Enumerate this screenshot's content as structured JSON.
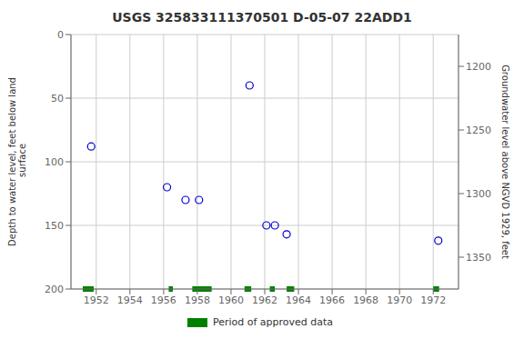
{
  "chart_data": {
    "type": "scatter",
    "title": "USGS 325833111370501 D-05-07 22ADD1",
    "x": [
      1951.7,
      1956.2,
      1957.3,
      1958.1,
      1961.1,
      1962.1,
      1962.6,
      1963.3,
      1972.3
    ],
    "values": [
      88,
      120,
      130,
      130,
      40,
      150,
      150,
      157,
      162
    ],
    "color": "#0000cc",
    "marker": "circle",
    "approved_periods": {
      "name": "Period of approved data",
      "color": "#008000",
      "start": [
        1951.2,
        1956.3,
        1957.7,
        1960.8,
        1962.3,
        1963.3,
        1972.0
      ],
      "end": [
        1951.85,
        1956.55,
        1958.85,
        1961.2,
        1962.6,
        1963.75,
        1972.35
      ]
    },
    "xlim": [
      1950.5,
      1973.5
    ],
    "xticks": [
      1952,
      1954,
      1956,
      1958,
      1960,
      1962,
      1964,
      1966,
      1968,
      1970,
      1972
    ],
    "ylim": [
      200,
      0
    ],
    "yticks": [
      0,
      50,
      100,
      150,
      200
    ],
    "ylabel": "Depth to water level, feet below land\n surface",
    "y2lim": [
      1375,
      1175
    ],
    "y2ticks": [
      1200,
      1250,
      1300,
      1350
    ],
    "y2label": "Groundwater level above NGVD 1929, feet",
    "grid": true,
    "legend": "bottom"
  }
}
